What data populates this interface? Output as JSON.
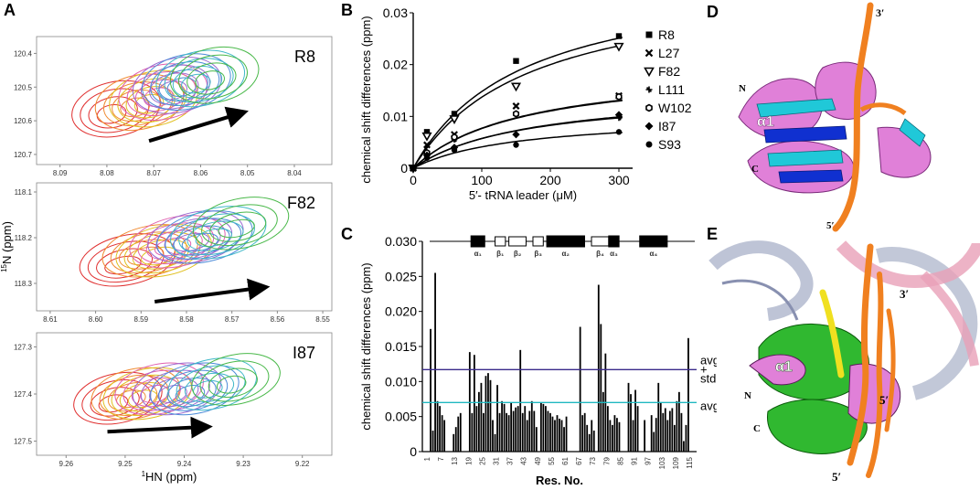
{
  "panel_labels": {
    "A": "A",
    "B": "B",
    "C": "C",
    "D": "D",
    "E": "E"
  },
  "colors": {
    "contours": [
      "#e03030",
      "#f08a30",
      "#e0c020",
      "#e060b0",
      "#9a6ad0",
      "#4a8ad8",
      "#40b8c8",
      "#48b848"
    ],
    "arrow": "#000000",
    "avg_line": "#20b8c0",
    "avgstd_line": "#3a2a8a",
    "helix_d": "#e080d8",
    "cyan": "#20c8d8",
    "blue": "#1030d0",
    "orange": "#f08020",
    "green": "#30b830",
    "yellow": "#f0e020",
    "rna_grey": "#a8b0c8",
    "rna_pink": "#e8a0b8"
  },
  "chart_data": [
    {
      "type": "contour",
      "residue": "R8",
      "xlim": [
        8.095,
        8.032
      ],
      "ylim": [
        120.35,
        120.73
      ],
      "xticks": [
        8.09,
        8.08,
        8.07,
        8.06,
        8.05,
        8.04
      ],
      "yticks": [
        120.4,
        120.5,
        120.6,
        120.7
      ],
      "peaks": [
        [
          8.079,
          120.58
        ],
        [
          8.074,
          120.56
        ],
        [
          8.071,
          120.55
        ],
        [
          8.069,
          120.53
        ],
        [
          8.066,
          120.51
        ],
        [
          8.064,
          120.5
        ],
        [
          8.061,
          120.49
        ],
        [
          8.058,
          120.48
        ]
      ],
      "arrow": {
        "from": [
          8.071,
          120.66
        ],
        "to": [
          8.052,
          120.58
        ]
      }
    },
    {
      "type": "contour",
      "residue": "F82",
      "xlim": [
        8.613,
        8.548
      ],
      "ylim": [
        118.08,
        118.36
      ],
      "xticks": [
        8.61,
        8.6,
        8.59,
        8.58,
        8.57,
        8.56,
        8.55
      ],
      "yticks": [
        118.1,
        118.2,
        118.3
      ],
      "peaks": [
        [
          8.594,
          118.26
        ],
        [
          8.589,
          118.24
        ],
        [
          8.586,
          118.24
        ],
        [
          8.583,
          118.22
        ],
        [
          8.579,
          118.21
        ],
        [
          8.577,
          118.21
        ],
        [
          8.574,
          118.2
        ],
        [
          8.569,
          118.18
        ]
      ],
      "arrow": {
        "from": [
          8.587,
          118.34
        ],
        "to": [
          8.564,
          118.31
        ]
      }
    },
    {
      "type": "contour",
      "residue": "I87",
      "xlim": [
        9.265,
        9.215
      ],
      "ylim": [
        127.27,
        127.53
      ],
      "xticks": [
        9.26,
        9.25,
        9.24,
        9.23,
        9.22
      ],
      "yticks": [
        127.3,
        127.4,
        127.5
      ],
      "peaks": [
        [
          9.252,
          127.42
        ],
        [
          9.249,
          127.41
        ],
        [
          9.247,
          127.41
        ],
        [
          9.245,
          127.4
        ],
        [
          9.242,
          127.4
        ],
        [
          9.239,
          127.4
        ],
        [
          9.236,
          127.39
        ],
        [
          9.232,
          127.38
        ]
      ],
      "arrow": {
        "from": [
          9.253,
          127.48
        ],
        "to": [
          9.237,
          127.47
        ]
      },
      "xlabel": "¹HN (ppm)"
    },
    {
      "type": "scatter-fit",
      "ylabel": "chemical shift differences (ppm)",
      "xlabel": "5′- tRNA leader (μM)",
      "xlim": [
        0,
        320
      ],
      "ylim": [
        0,
        0.03
      ],
      "xticks": [
        0,
        100,
        200,
        300
      ],
      "yticks": [
        0,
        0.01,
        0.02,
        0.03
      ],
      "x": [
        0,
        20,
        60,
        150,
        300
      ],
      "series": [
        {
          "name": "R8",
          "marker": "square",
          "values": [
            0,
            0.007,
            0.0105,
            0.0207,
            0.0255
          ],
          "fit": [
            0.0385,
            160
          ]
        },
        {
          "name": "L27",
          "marker": "x",
          "values": [
            0,
            0.0045,
            0.0065,
            0.012,
            0.014
          ],
          "fit": [
            0.0201,
            160
          ]
        },
        {
          "name": "F82",
          "marker": "triangle-down",
          "values": [
            0,
            0.0062,
            0.0095,
            0.0158,
            0.0235
          ],
          "fit": [
            0.037,
            170
          ]
        },
        {
          "name": "L111",
          "marker": "star",
          "values": [
            0,
            0.002,
            0.0055,
            0.0105,
            0.0097
          ],
          "fit": [
            0.0149,
            160
          ]
        },
        {
          "name": "W102",
          "marker": "hexagon",
          "values": [
            0,
            0.003,
            0.006,
            0.0105,
            0.0138
          ],
          "fit": [
            0.0199,
            160
          ]
        },
        {
          "name": "I87",
          "marker": "diamond",
          "values": [
            0,
            0.0025,
            0.004,
            0.0065,
            0.0103
          ],
          "fit": [
            0.0155,
            170
          ]
        },
        {
          "name": "S93",
          "marker": "circle",
          "values": [
            0,
            0.002,
            0.0035,
            0.0045,
            0.007
          ],
          "fit": [
            0.0103,
            150
          ]
        }
      ]
    },
    {
      "type": "bar",
      "ylabel": "chemical shift differences (ppm)",
      "xlabel": "Res. No.",
      "ylim": [
        0,
        0.03
      ],
      "yticks": [
        "0",
        "0.005",
        "0.010",
        "0.015",
        "0.020",
        "0.025",
        "0.030"
      ],
      "xtick_labels": [
        1,
        7,
        13,
        19,
        25,
        31,
        37,
        43,
        49,
        55,
        61,
        67,
        73,
        79,
        85,
        91,
        97,
        103,
        109,
        115
      ],
      "residues": [
        1,
        117
      ],
      "values": [
        0.0,
        0.0,
        0.0175,
        0.003,
        0.0255,
        0.0072,
        0.0065,
        0.0052,
        0.0045,
        0.0,
        0.0,
        0.0,
        0.0025,
        0.0035,
        0.005,
        0.0055,
        0.0,
        0.0,
        0.0,
        0.0142,
        0.0055,
        0.0138,
        0.0065,
        0.0085,
        0.0098,
        0.0055,
        0.0108,
        0.0112,
        0.0102,
        0.0045,
        0.0025,
        0.0095,
        0.0055,
        0.0072,
        0.0068,
        0.0055,
        0.0052,
        0.007,
        0.0058,
        0.0063,
        0.0065,
        0.0145,
        0.0055,
        0.0065,
        0.0045,
        0.0058,
        0.0072,
        0.0058,
        0.0035,
        0.0,
        0.007,
        0.0068,
        0.0065,
        0.0058,
        0.0055,
        0.005,
        0.0045,
        0.0052,
        0.0047,
        0.0045,
        0.0035,
        0.005,
        0.0,
        0.0,
        0.0,
        0.0,
        0.0,
        0.0178,
        0.0052,
        0.0055,
        0.0038,
        0.0025,
        0.0045,
        0.003,
        0.0,
        0.0238,
        0.0182,
        0.0085,
        0.014,
        0.0065,
        0.0045,
        0.0038,
        0.0052,
        0.0048,
        0.0042,
        0.0,
        0.0,
        0.0,
        0.0098,
        0.0082,
        0.0045,
        0.0088,
        0.0065,
        0.0,
        0.0,
        0.0045,
        0.0,
        0.0,
        0.0052,
        0.0028,
        0.0048,
        0.0098,
        0.007,
        0.0055,
        0.0062,
        0.0045,
        0.0058,
        0.0062,
        0.0038,
        0.0072,
        0.0085,
        0.0055,
        0.0015,
        0.0038,
        0.0162,
        0.0,
        0.0
      ],
      "avg": 0.007,
      "avg_label": "avg",
      "avg_std": 0.0117,
      "avg_std_label": [
        "avg",
        "+",
        "std"
      ],
      "secondary_structure": [
        {
          "label": "α₁",
          "type": "helix",
          "start": 13,
          "end": 17
        },
        {
          "label": "β₁",
          "type": "strand",
          "start": 20,
          "end": 23
        },
        {
          "label": "β₂",
          "type": "strand",
          "start": 24,
          "end": 29
        },
        {
          "label": "β₃",
          "type": "strand",
          "start": 31,
          "end": 34
        },
        {
          "label": "α₂",
          "type": "helix",
          "start": 35,
          "end": 46
        },
        {
          "label": "β₄",
          "type": "strand",
          "start": 48,
          "end": 53
        },
        {
          "label": "α₃",
          "type": "helix",
          "start": 53,
          "end": 56
        },
        {
          "label": "α₄",
          "type": "helix",
          "start": 62,
          "end": 70
        }
      ]
    }
  ],
  "axis_labels": {
    "nitrogen": "15N (ppm)",
    "nitrogen_sup": "15",
    "nitrogen_rest": "N (ppm)",
    "proton_sup": "1",
    "proton_rest": "HN (ppm)"
  },
  "structure_d": {
    "labels": [
      "3′",
      "N",
      "α1",
      "C",
      "5′"
    ]
  },
  "structure_e": {
    "labels": [
      "3′",
      "α1",
      "N",
      "C",
      "5′",
      "5′"
    ]
  }
}
